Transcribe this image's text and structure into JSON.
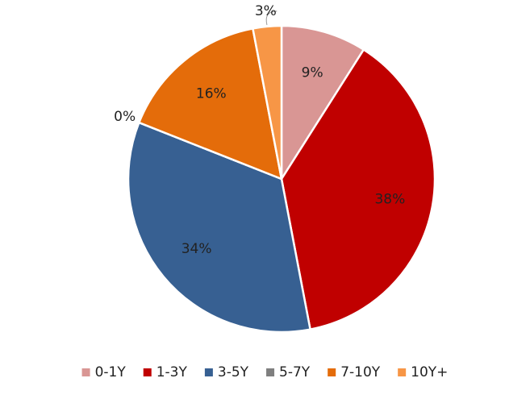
{
  "chart_data": {
    "type": "pie",
    "categories": [
      "0-1Y",
      "1-3Y",
      "3-5Y",
      "5-7Y",
      "7-10Y",
      "10Y+"
    ],
    "values": [
      9,
      38,
      34,
      0,
      16,
      3
    ],
    "value_labels": [
      "9%",
      "38%",
      "34%",
      "0%",
      "16%",
      "3%"
    ],
    "colors": [
      "#d99694",
      "#c00000",
      "#376092",
      "#7f7f7f",
      "#e46c0a",
      "#f79646"
    ],
    "legend": "bottom"
  }
}
